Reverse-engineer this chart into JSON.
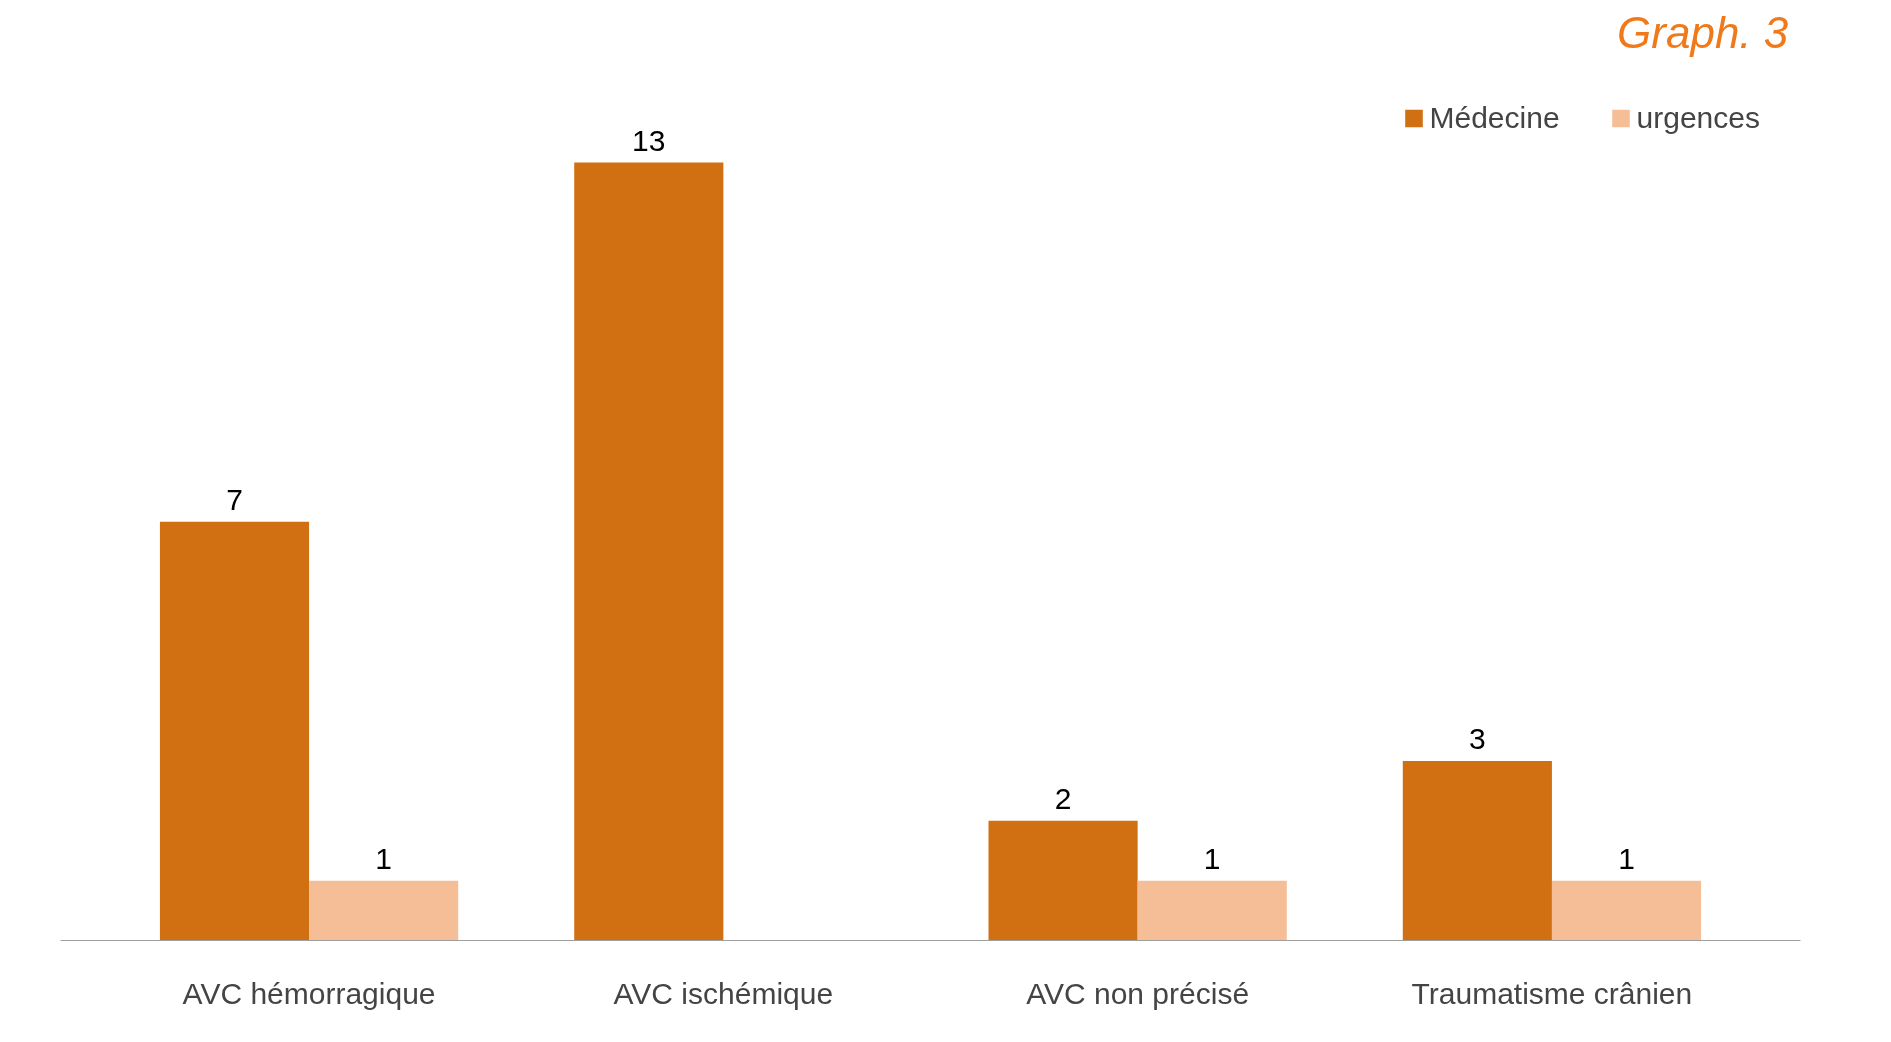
{
  "chart_data": {
    "type": "bar",
    "title": "Graph.  3",
    "categories": [
      "AVC hémorragique",
      "AVC ischémique",
      "AVC non précisé",
      "Traumatisme crânien"
    ],
    "series": [
      {
        "name": "Médecine",
        "color": "#d07013",
        "values": [
          7,
          13,
          2,
          3
        ]
      },
      {
        "name": "urgences",
        "color": "#f5be96",
        "values": [
          1,
          null,
          1,
          1
        ]
      }
    ],
    "data_labels": true,
    "legend": "top right",
    "grid": false
  }
}
